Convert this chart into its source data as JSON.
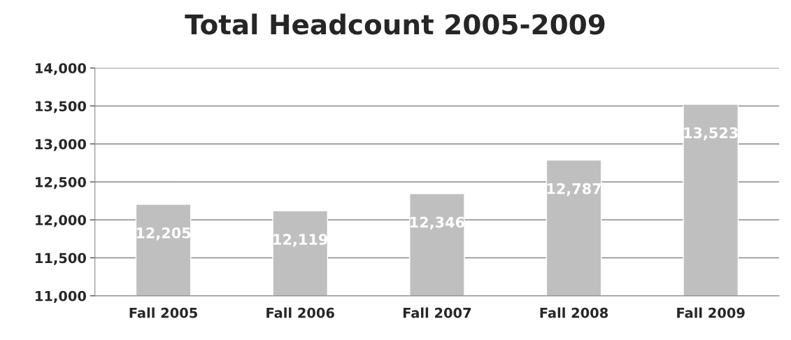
{
  "chart_data": {
    "type": "bar",
    "title": "Total Headcount 2005-2009",
    "categories": [
      "Fall 2005",
      "Fall 2006",
      "Fall 2007",
      "Fall 2008",
      "Fall 2009"
    ],
    "values": [
      12205,
      12119,
      12346,
      12787,
      13523
    ],
    "color": "#bfbfbf",
    "ylim": [
      11000,
      14000
    ],
    "yticks": [
      {
        "value": 11000,
        "label": "11,000"
      },
      {
        "value": 11500,
        "label": "11,500"
      },
      {
        "value": 12000,
        "label": "12,000"
      },
      {
        "value": 12500,
        "label": "12,500"
      },
      {
        "value": 13000,
        "label": "13,000"
      },
      {
        "value": 13500,
        "label": "13,500"
      },
      {
        "value": 14000,
        "label": "14,000"
      }
    ],
    "grid": "y",
    "value_labels": [
      "12,205",
      "12,119",
      "12,346",
      "12,787",
      "13,523"
    ]
  }
}
